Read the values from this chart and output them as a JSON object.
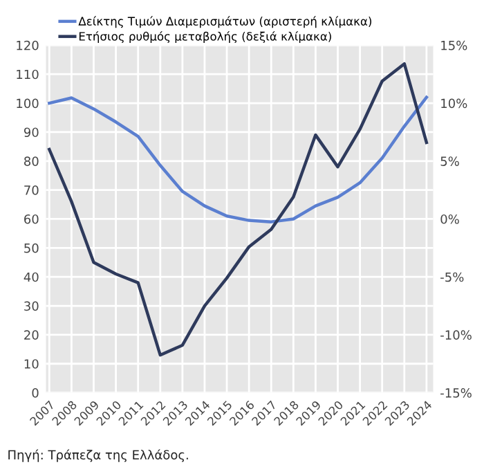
{
  "chart_data": {
    "type": "line",
    "categories": [
      "2007",
      "2008",
      "2009",
      "2010",
      "2011",
      "2012",
      "2013",
      "2014",
      "2015",
      "2016",
      "2017",
      "2018",
      "2019",
      "2020",
      "2021",
      "2022",
      "2023",
      "2024"
    ],
    "series": [
      {
        "name": "Δείκτης Τιμών Διαμερισμάτων (αριστερή κλίμακα)",
        "color": "#5b7fd0",
        "values": [
          100,
          101.8,
          98,
          93.5,
          88.5,
          78.5,
          69.5,
          64.5,
          61,
          59.5,
          59,
          60,
          64.5,
          67.5,
          72.5,
          81,
          92,
          102
        ]
      },
      {
        "name": "Ετήσιος ρυθμός μεταβολής (δεξιά κλίμακα)",
        "color": "#2e3a5c",
        "axis": "y2",
        "values": [
          6.0,
          1.5,
          -3.75,
          -4.75,
          -5.5,
          -11.75,
          -10.9,
          -7.5,
          -5.1,
          -2.4,
          -0.9,
          1.9,
          7.25,
          4.5,
          7.75,
          11.9,
          13.4,
          6.6
        ]
      }
    ],
    "ylim": [
      0,
      120
    ],
    "yticks": [
      0,
      10,
      20,
      30,
      40,
      50,
      60,
      70,
      80,
      90,
      100,
      110,
      120
    ],
    "y2lim": [
      -15,
      15
    ],
    "y2ticks": [
      {
        "value": -15,
        "label": "-15%"
      },
      {
        "value": -10,
        "label": "-10%"
      },
      {
        "value": -5,
        "label": "-5%"
      },
      {
        "value": 0,
        "label": "0%"
      },
      {
        "value": 5,
        "label": "5%"
      },
      {
        "value": 10,
        "label": "10%"
      },
      {
        "value": 15,
        "label": "15%"
      }
    ],
    "grid": true,
    "legend": "top left",
    "annotations": [
      "Πηγή: Τράπεζα της Ελλάδος."
    ]
  }
}
